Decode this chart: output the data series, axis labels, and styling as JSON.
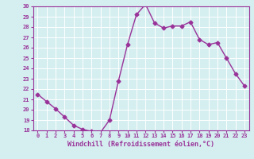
{
  "x": [
    0,
    1,
    2,
    3,
    4,
    5,
    6,
    7,
    8,
    9,
    10,
    11,
    12,
    13,
    14,
    15,
    16,
    17,
    18,
    19,
    20,
    21,
    22,
    23
  ],
  "y": [
    21.5,
    20.8,
    20.1,
    19.3,
    18.5,
    18.1,
    17.9,
    17.8,
    19.0,
    22.8,
    26.3,
    29.2,
    30.2,
    28.4,
    27.9,
    28.1,
    28.1,
    28.5,
    26.8,
    26.3,
    26.5,
    25.0,
    23.5,
    22.3
  ],
  "line_color": "#993399",
  "marker": "D",
  "markersize": 2.5,
  "linewidth": 1.0,
  "ylim": [
    18,
    30
  ],
  "yticks": [
    18,
    19,
    20,
    21,
    22,
    23,
    24,
    25,
    26,
    27,
    28,
    29,
    30
  ],
  "xticks": [
    0,
    1,
    2,
    3,
    4,
    5,
    6,
    7,
    8,
    9,
    10,
    11,
    12,
    13,
    14,
    15,
    16,
    17,
    18,
    19,
    20,
    21,
    22,
    23
  ],
  "xlabel": "Windchill (Refroidissement éolien,°C)",
  "xlabel_fontsize": 6.0,
  "tick_fontsize": 5.0,
  "background_color": "#d5eef0",
  "grid_color": "#ffffff",
  "spine_color": "#993399"
}
